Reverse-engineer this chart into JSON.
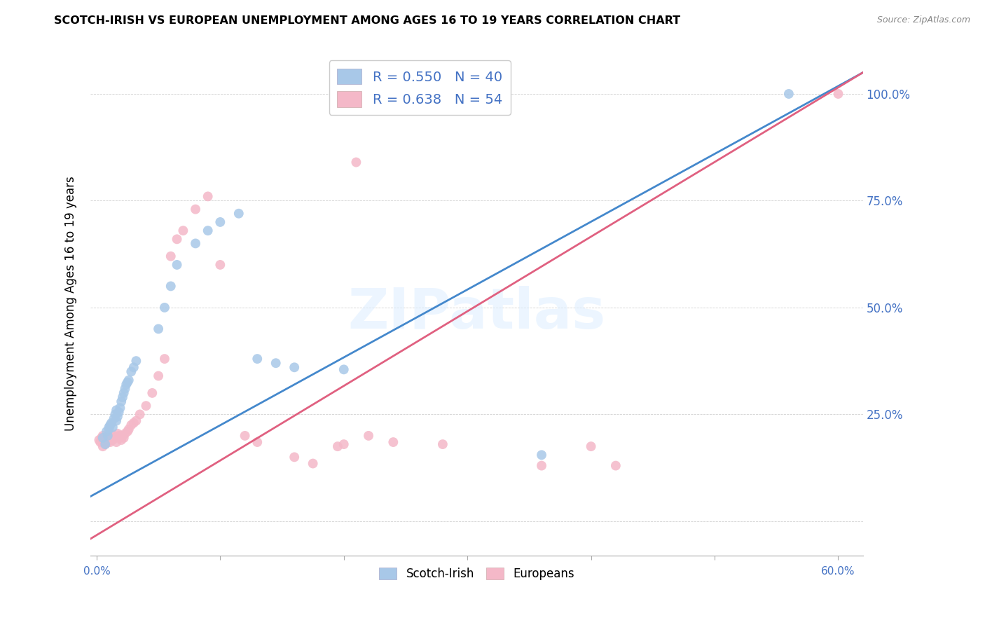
{
  "title": "SCOTCH-IRISH VS EUROPEAN UNEMPLOYMENT AMONG AGES 16 TO 19 YEARS CORRELATION CHART",
  "source_text": "Source: ZipAtlas.com",
  "ylabel": "Unemployment Among Ages 16 to 19 years",
  "watermark": "ZIPatlas",
  "legend_blue_label": "R = 0.550   N = 40",
  "legend_pink_label": "R = 0.638   N = 54",
  "legend_scotchirish": "Scotch-Irish",
  "legend_europeans": "Europeans",
  "blue_color": "#a8c8e8",
  "pink_color": "#f4b8c8",
  "blue_line_color": "#4488cc",
  "pink_line_color": "#e06080",
  "blue_scatter_x": [
    0.005,
    0.007,
    0.008,
    0.009,
    0.01,
    0.01,
    0.011,
    0.012,
    0.013,
    0.014,
    0.015,
    0.016,
    0.016,
    0.017,
    0.018,
    0.019,
    0.02,
    0.021,
    0.022,
    0.023,
    0.024,
    0.025,
    0.026,
    0.028,
    0.03,
    0.032,
    0.05,
    0.055,
    0.06,
    0.065,
    0.08,
    0.09,
    0.1,
    0.115,
    0.13,
    0.145,
    0.16,
    0.2,
    0.36,
    0.56
  ],
  "blue_scatter_y": [
    0.195,
    0.18,
    0.21,
    0.2,
    0.22,
    0.215,
    0.225,
    0.23,
    0.22,
    0.24,
    0.25,
    0.235,
    0.26,
    0.245,
    0.255,
    0.265,
    0.28,
    0.29,
    0.3,
    0.31,
    0.32,
    0.325,
    0.33,
    0.35,
    0.36,
    0.375,
    0.45,
    0.5,
    0.55,
    0.6,
    0.65,
    0.68,
    0.7,
    0.72,
    0.38,
    0.37,
    0.36,
    0.355,
    0.155,
    1.0
  ],
  "pink_scatter_x": [
    0.002,
    0.003,
    0.004,
    0.005,
    0.005,
    0.006,
    0.007,
    0.007,
    0.008,
    0.009,
    0.01,
    0.011,
    0.012,
    0.013,
    0.014,
    0.015,
    0.016,
    0.017,
    0.018,
    0.019,
    0.02,
    0.021,
    0.022,
    0.023,
    0.025,
    0.026,
    0.028,
    0.03,
    0.032,
    0.035,
    0.04,
    0.045,
    0.05,
    0.055,
    0.06,
    0.065,
    0.07,
    0.08,
    0.09,
    0.1,
    0.12,
    0.13,
    0.16,
    0.175,
    0.195,
    0.2,
    0.21,
    0.22,
    0.24,
    0.28,
    0.36,
    0.4,
    0.42,
    0.6
  ],
  "pink_scatter_y": [
    0.19,
    0.185,
    0.195,
    0.175,
    0.2,
    0.185,
    0.195,
    0.18,
    0.19,
    0.185,
    0.195,
    0.185,
    0.195,
    0.19,
    0.2,
    0.195,
    0.185,
    0.205,
    0.2,
    0.195,
    0.19,
    0.2,
    0.195,
    0.205,
    0.21,
    0.215,
    0.225,
    0.23,
    0.235,
    0.25,
    0.27,
    0.3,
    0.34,
    0.38,
    0.62,
    0.66,
    0.68,
    0.73,
    0.76,
    0.6,
    0.2,
    0.185,
    0.15,
    0.135,
    0.175,
    0.18,
    0.84,
    0.2,
    0.185,
    0.18,
    0.13,
    0.175,
    0.13,
    1.0
  ],
  "blue_line_x0": -0.01,
  "blue_line_x1": 0.62,
  "blue_line_y0": 0.05,
  "blue_line_y1": 1.05,
  "pink_line_x0": -0.01,
  "pink_line_x1": 0.62,
  "pink_line_y0": -0.05,
  "pink_line_y1": 1.05,
  "xlim": [
    -0.005,
    0.62
  ],
  "ylim": [
    -0.08,
    1.1
  ],
  "xticks": [
    0.0,
    0.1,
    0.2,
    0.3,
    0.4,
    0.5,
    0.6
  ],
  "yticks": [
    0.0,
    0.25,
    0.5,
    0.75,
    1.0
  ],
  "right_yticklabels": [
    "",
    "25.0%",
    "50.0%",
    "75.0%",
    "100.0%"
  ]
}
